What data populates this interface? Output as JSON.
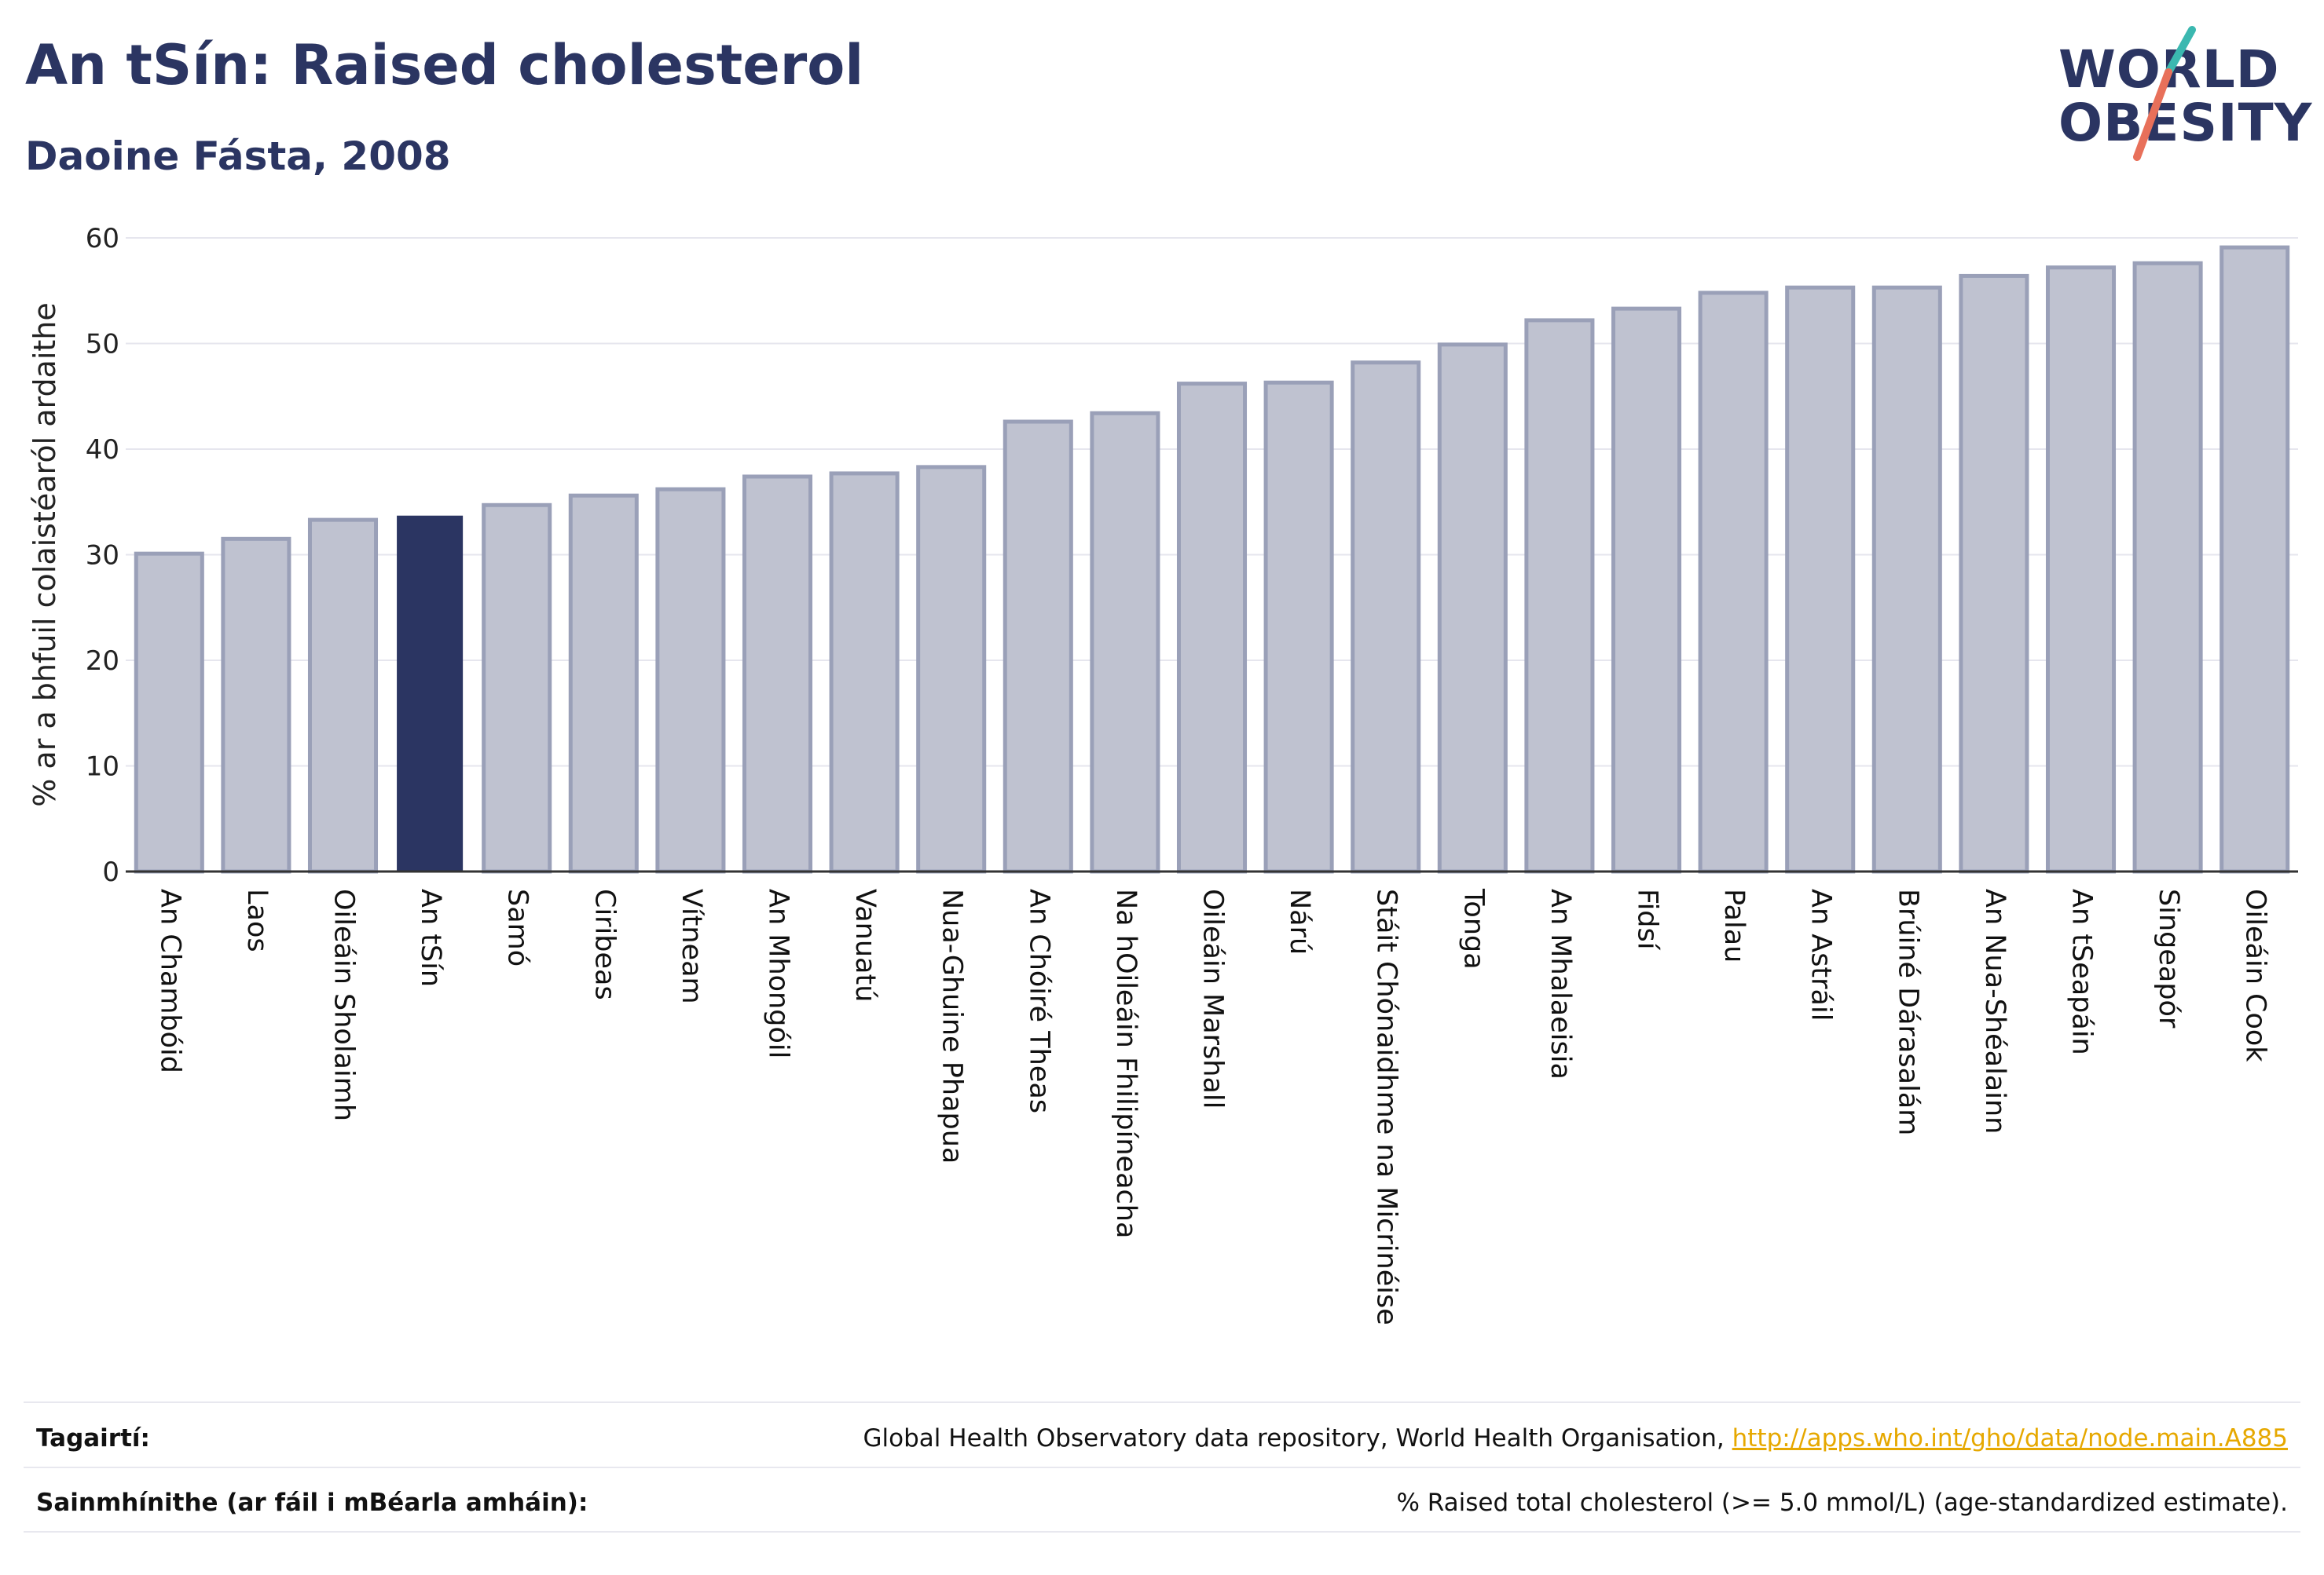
{
  "header": {
    "title": "An tSín: Raised cholesterol",
    "subtitle": "Daoine Fásta, 2008"
  },
  "logo": {
    "line1": "WORLD",
    "line2": "OBESITY",
    "colors": {
      "text": "#2b3562",
      "slash_top": "#3bb8b0",
      "slash_bottom": "#e8705a"
    }
  },
  "colors": {
    "bar": "#bfc2d0",
    "bar_stroke": "#9aa0b8",
    "highlight": "#2b3562",
    "grid": "#e6e6ee",
    "axis": "#333333"
  },
  "chart_data": {
    "type": "bar",
    "ylabel": "% ar a bhfuil colaistéaról ardaithe",
    "ylim": [
      0,
      60
    ],
    "yticks": [
      0,
      10,
      20,
      30,
      40,
      50,
      60
    ],
    "grid": true,
    "highlight": "An tSín",
    "categories": [
      "An Chambóid",
      "Laos",
      "Oileáin Sholaimh",
      "An tSín",
      "Samó",
      "Ciribeas",
      "Vítneam",
      "An Mhongóil",
      "Vanuatú",
      "Nua-Ghuine Phapua",
      "An Chóiré Theas",
      "Na hOileáin Fhilipíneacha",
      "Oileáin Marshall",
      "Nárú",
      "Stáit Chónaidhme na Micrinéise",
      "Tonga",
      "An Mhalaeisia",
      "Fidsí",
      "Palau",
      "An Astráil",
      "Brúiné Dárasalám",
      "An Nua-Shéalainn",
      "An tSeapáin",
      "Singeapór",
      "Oileáin Cook"
    ],
    "values": [
      30.1,
      31.5,
      33.3,
      33.7,
      34.7,
      35.6,
      36.2,
      37.4,
      37.7,
      38.3,
      42.6,
      43.4,
      46.2,
      46.3,
      48.2,
      49.9,
      52.2,
      53.3,
      54.8,
      55.3,
      55.3,
      56.4,
      57.2,
      57.6,
      59.1
    ]
  },
  "footer": {
    "references_label": "Tagairtí:",
    "references_text": "Global Health Observatory data repository, World Health Organisation, ",
    "references_link": "http://apps.who.int/gho/data/node.main.A885",
    "definitions_label": "Sainmhínithe (ar fáil i mBéarla amháin):",
    "definitions_text": "% Raised total cholesterol (>= 5.0 mmol/L) (age-standardized estimate)."
  }
}
